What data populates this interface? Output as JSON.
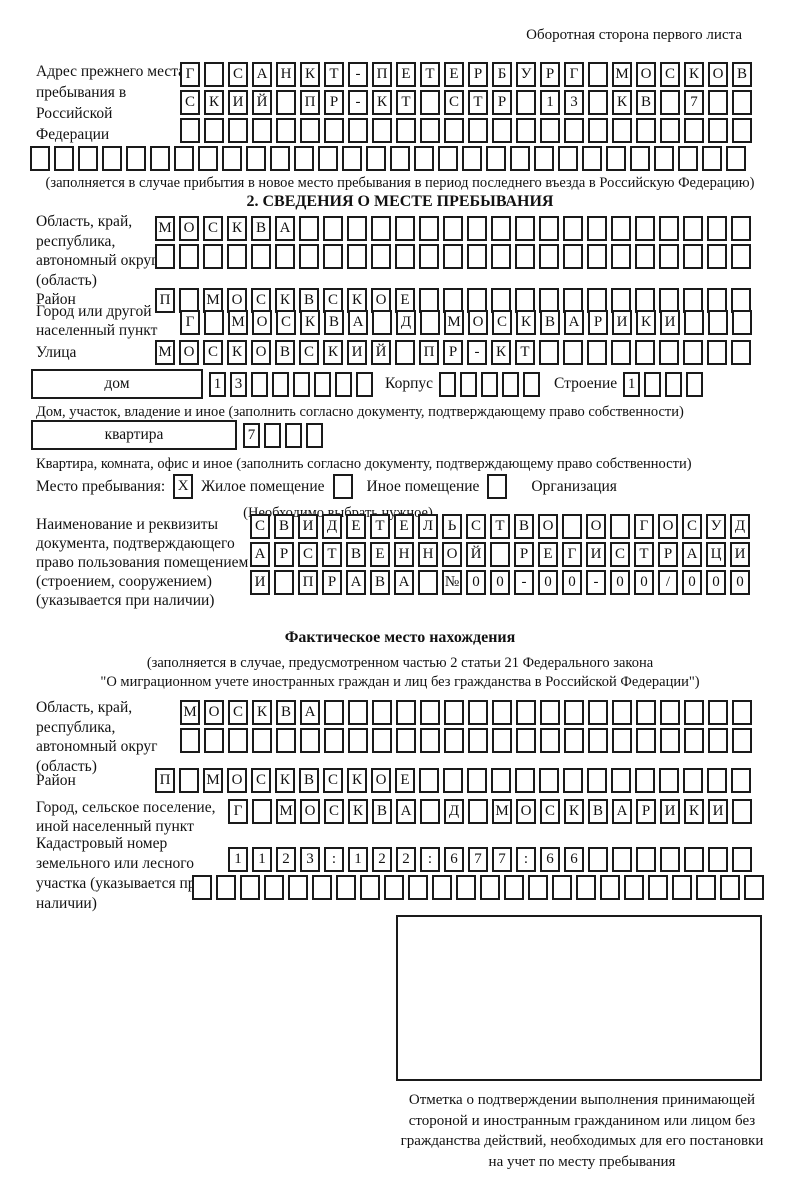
{
  "header": {
    "note": "Оборотная сторона первого листа"
  },
  "prev_address": {
    "label": "Адрес прежнего места пребывания в Российской Федерации",
    "row1": "Г САНКТ-ПЕТЕРБУРГ МОСКОВ",
    "row2": "СКИЙ ПР-КТ СТР 13 КВ 7  ",
    "row3": "                        ",
    "row4": "                              ",
    "note": "(заполняется в случае прибытия в новое место пребывания в период последнего въезда в Российскую Федерацию)"
  },
  "section2": {
    "title": "2. СВЕДЕНИЯ О МЕСТЕ ПРЕБЫВАНИЯ",
    "region": {
      "label": "Область, край, республика, автономный округ (область)",
      "row1": "МОСКВА                   ",
      "row2": "                         "
    },
    "raion": {
      "label": "Район",
      "row": "П МОСКВСКОЕ              "
    },
    "gorod": {
      "label": "Город или другой населенный пункт",
      "row": "Г МОСКВА Д МОСКВАРИКИ   "
    },
    "ulitsa": {
      "label": "Улица",
      "row": "МОСКОВСКИЙ ПР-КТ         "
    },
    "dom": {
      "box_label": "дом",
      "cells": "13      ",
      "korpus_label": "Корпус",
      "korpus_cells": "     ",
      "stroenie_label": "Строение",
      "stroenie_cells": "1   "
    },
    "dom_note": "Дом, участок, владение и иное (заполнить согласно документу, подтверждающему право собственности)",
    "kvartira": {
      "box_label": "квартира",
      "cells": "7   "
    },
    "kvartira_note": "Квартира, комната, офис и иное (заполнить согласно документу, подтверждающему право собственности)",
    "mesto": {
      "label": "Место пребывания:",
      "zhiloe_cb": "X",
      "zhiloe_label": "Жилое помещение",
      "inoe_cb": " ",
      "inoe_label": "Иное помещение",
      "org_cb": " ",
      "org_label": "Организация",
      "note": "(Необходимо выбрать нужное)"
    },
    "document": {
      "label": "Наименование и реквизиты документа, подтверждающего право пользования помещением (строением, сооружением) (указывается при наличии)",
      "row1": "СВИДЕТЕЛЬСТВО О ГОСУД",
      "row2": "АРСТВЕННОЙ РЕГИСТРАЦИ",
      "row3": "И ПРАВА №00-00-00/000"
    }
  },
  "fact": {
    "title": "Фактическое место нахождения",
    "note1": "(заполняется в случае, предусмотренном частью 2 статьи 21 Федерального закона",
    "note2": "\"О миграционном учете иностранных граждан и лиц без гражданства в Российской Федерации\")",
    "region": {
      "label": "Область, край, республика, автономный округ (область)",
      "row1": "МОСКВА                  ",
      "row2": "                        "
    },
    "raion": {
      "label": "Район",
      "row": "П МОСКВСКОЕ              "
    },
    "gorod": {
      "label": "Город, сельское поселение, иной населенный пункт",
      "row": "Г МОСКВА Д МОСКВАРИКИ "
    },
    "kadastr": {
      "label": "Кадастровый номер земельного или лесного участка (указывается при наличии)",
      "row1": "1123:122:677:66       ",
      "row2": "                        "
    }
  },
  "footer": {
    "mark_note": "Отметка о подтверждении выполнения принимающей стороной и иностранным гражданином или лицом без гражданства действий, необходимых для его постановки на учет по месту пребывания"
  }
}
